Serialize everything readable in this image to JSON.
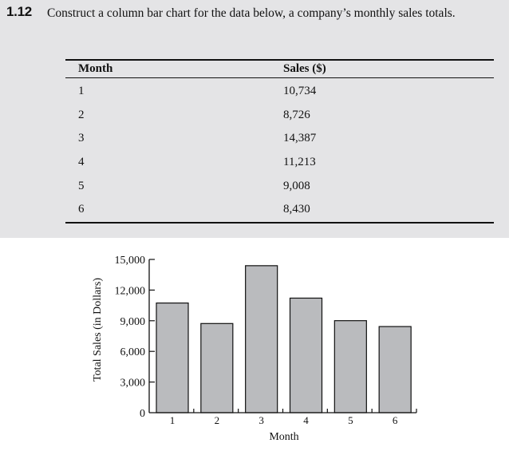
{
  "problem": {
    "number": "1.12",
    "text": "Construct a column bar chart for the data below, a company’s monthly sales totals."
  },
  "table": {
    "headers": [
      "Month",
      "Sales ($)"
    ],
    "rows": [
      [
        "1",
        "10,734"
      ],
      [
        "2",
        "8,726"
      ],
      [
        "3",
        "14,387"
      ],
      [
        "4",
        "11,213"
      ],
      [
        "5",
        "9,008"
      ],
      [
        "6",
        "8,430"
      ]
    ]
  },
  "chart_data": {
    "type": "bar",
    "categories": [
      "1",
      "2",
      "3",
      "4",
      "5",
      "6"
    ],
    "values": [
      10734,
      8726,
      14387,
      11213,
      9008,
      8430
    ],
    "xlabel": "Month",
    "ylabel": "Total Sales (in Dollars)",
    "ylim": [
      0,
      15000
    ],
    "yticks": [
      0,
      3000,
      6000,
      9000,
      12000,
      15000
    ],
    "ytick_labels": [
      "0",
      "3,000",
      "6,000",
      "9,000",
      "12,000",
      "15,000"
    ],
    "bar_color": "#babbbe",
    "grid": false,
    "legend": "none"
  }
}
